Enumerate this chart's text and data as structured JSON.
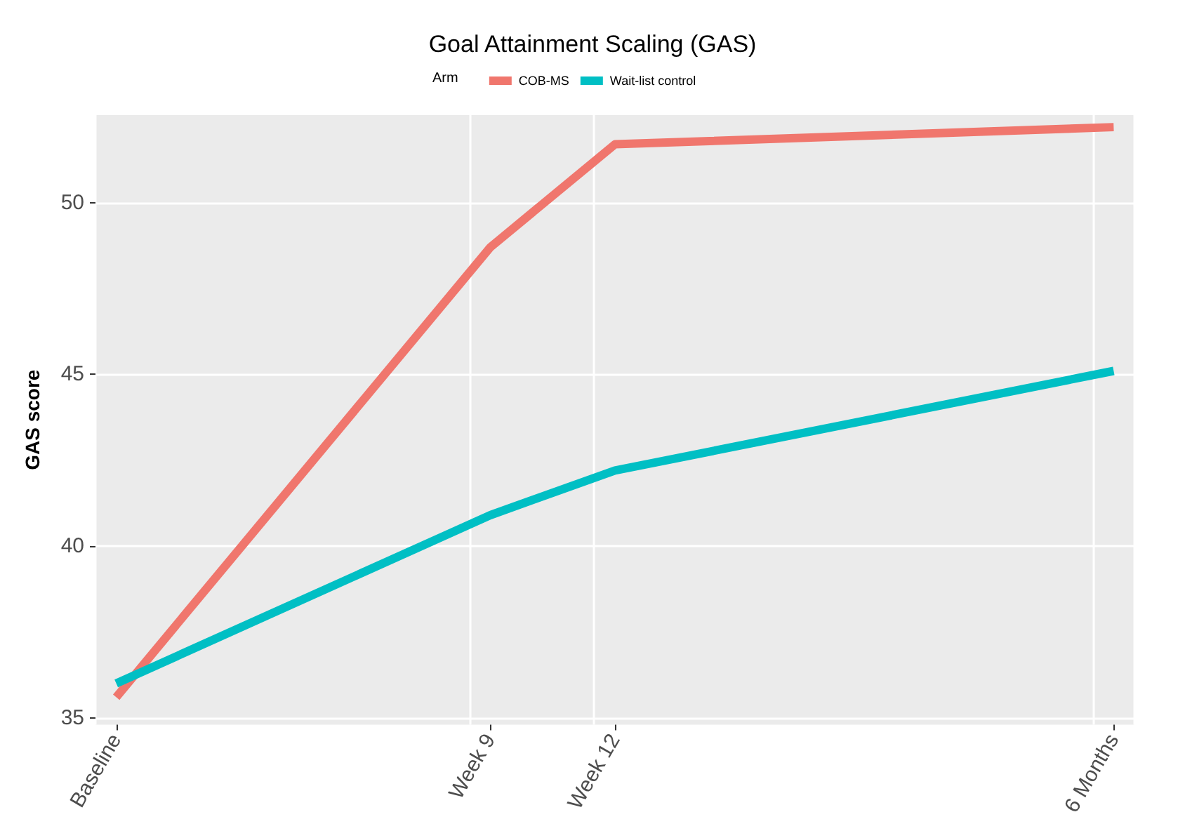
{
  "chart_data": {
    "type": "line",
    "title": "Goal Attainment Scaling (GAS)",
    "ylabel": "GAS score",
    "legend_title": "Arm",
    "categories": [
      "Baseline",
      null,
      null,
      null,
      null,
      null,
      null,
      null,
      null,
      "Week 9",
      null,
      null,
      "Week 12",
      null,
      null,
      null,
      null,
      null,
      null,
      null,
      null,
      null,
      null,
      null,
      "6 Months"
    ],
    "series": [
      {
        "name": "COB-MS",
        "color": "#f0766d",
        "values": [
          35.6,
          null,
          null,
          null,
          null,
          null,
          null,
          null,
          null,
          48.7,
          null,
          null,
          51.7,
          null,
          null,
          null,
          null,
          null,
          null,
          null,
          null,
          null,
          null,
          null,
          52.2
        ]
      },
      {
        "name": "Wait-list control",
        "color": "#00bfc4",
        "values": [
          36.0,
          null,
          null,
          null,
          null,
          null,
          null,
          null,
          null,
          40.9,
          null,
          null,
          42.2,
          null,
          null,
          null,
          null,
          null,
          null,
          null,
          null,
          null,
          null,
          null,
          45.1
        ]
      }
    ],
    "ylim": [
      34.8,
      52.55
    ],
    "yticks": [
      35,
      40,
      45,
      50
    ],
    "grid": true,
    "legend": "top",
    "marker": "none",
    "line_style": "solid"
  }
}
